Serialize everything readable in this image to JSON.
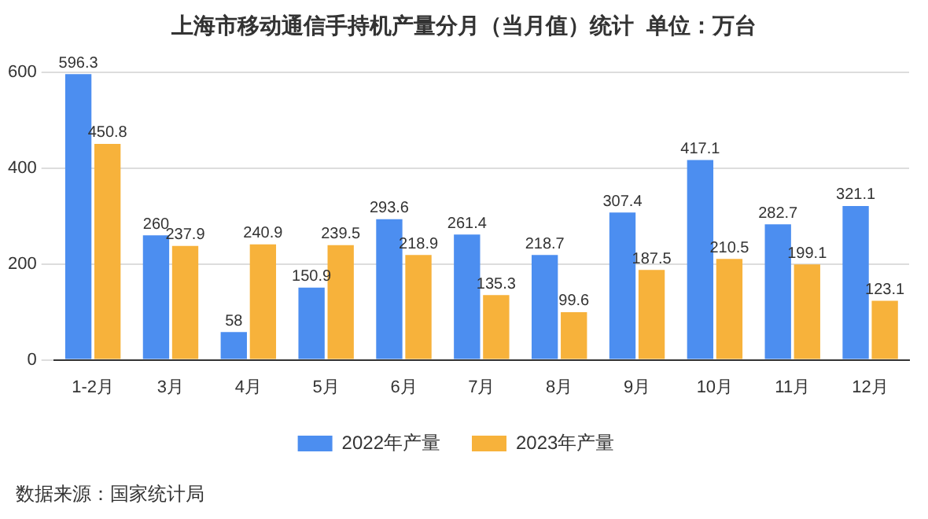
{
  "chart_data": {
    "type": "bar",
    "title": "上海市移动通信手持机产量分月（当月值）统计  单位：万台",
    "categories": [
      "1-2月",
      "3月",
      "4月",
      "5月",
      "6月",
      "7月",
      "8月",
      "9月",
      "10月",
      "11月",
      "12月"
    ],
    "series": [
      {
        "name": "2022年产量",
        "color": "#4c8ef0",
        "values": [
          596.3,
          260,
          58,
          150.9,
          293.6,
          261.4,
          218.7,
          307.4,
          417.1,
          282.7,
          321.1
        ]
      },
      {
        "name": "2023年产量",
        "color": "#f7b23b",
        "values": [
          450.8,
          237.9,
          240.9,
          239.5,
          218.9,
          135.3,
          99.6,
          187.5,
          210.5,
          199.1,
          123.1
        ]
      }
    ],
    "ylim": [
      0,
      600
    ],
    "yticks": [
      0,
      200,
      400,
      600
    ],
    "grid": "y",
    "legend": "bottom",
    "data_labels": true,
    "annotations": [
      "数据来源：国家统计局"
    ]
  }
}
